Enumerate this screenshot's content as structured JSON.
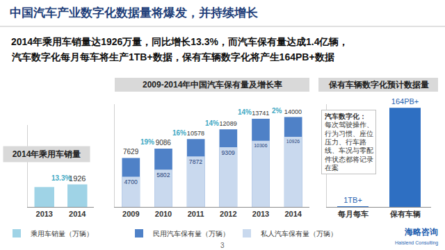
{
  "title": "中国汽车产业数字化数据量将爆发，并持续增长",
  "subtitle": [
    "2014年乘用车销量达1926万量，同比增长13.3%，而汽车保有量达成1.4亿辆，",
    "汽车数字化每月每车将生产1TB+数据，保有车辆数字化将产生164PB+数据"
  ],
  "chart_data": [
    {
      "type": "bar",
      "title": "2014年乘用车销量",
      "categories": [
        "2013",
        "2014"
      ],
      "series": [
        {
          "name": "乘用车销量（万辆）",
          "color": "#9fd3e6",
          "values": [
            1700,
            1926
          ],
          "value_labels": [
            null,
            "1926"
          ]
        }
      ],
      "growth": [
        null,
        13.3
      ],
      "growth_labels": [
        null,
        "13.3%"
      ],
      "ylim": [
        0,
        7000
      ],
      "tick_labels": "x",
      "data_labels": true,
      "legend": "bottom"
    },
    {
      "type": "bar",
      "title": "2009-2014年中国汽车保有量及增长率",
      "categories": [
        "2009",
        "2010",
        "2011",
        "2012",
        "2013",
        "2014"
      ],
      "series": [
        {
          "name": "民用汽车保有量（万辆）",
          "color": "#4f81c7",
          "values": [
            7629,
            9086,
            10578,
            12089,
            13741,
            14000
          ]
        },
        {
          "name": "私人汽车保有量（万辆）",
          "color": "#c9d9ee",
          "values": [
            4700,
            5802,
            7872,
            9309,
            10306,
            10926
          ]
        }
      ],
      "growth": [
        null,
        19,
        16,
        14,
        14,
        2
      ],
      "growth_labels": [
        null,
        "19%",
        "16%",
        "14%",
        "14%",
        "2%"
      ],
      "ylim": [
        0,
        16000
      ],
      "tick_labels": "x",
      "data_labels": true,
      "legend": "bottom",
      "stacked": false
    },
    {
      "type": "bar",
      "title": "保有车辆数字化预计数据量",
      "categories": [
        "每月每车",
        "保有车辆"
      ],
      "values": [
        1,
        164
      ],
      "value_labels": [
        "1TB+",
        "164PB+"
      ],
      "color": "#2e6fc2",
      "ylim": [
        0,
        170
      ],
      "tick_labels": "x",
      "data_labels": true,
      "note": {
        "title": "汽车数字化：",
        "lines": [
          "每次驾驶操作、",
          "行为习惯、座位",
          "压力、行车路",
          "线、车况与零配",
          "件状态都将记录",
          "在案"
        ]
      }
    }
  ],
  "footer": {
    "page": "3",
    "logo": "海略咨询",
    "logo_en": "Haislend Consulting"
  }
}
